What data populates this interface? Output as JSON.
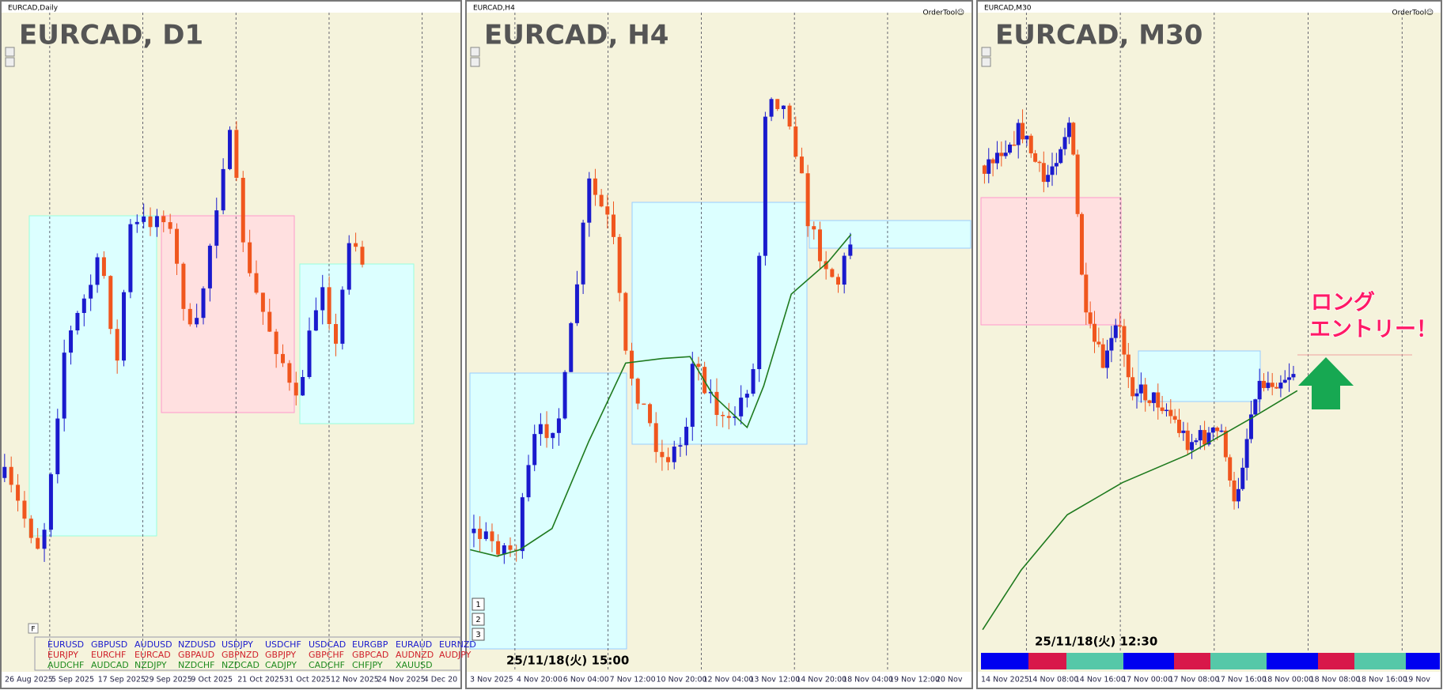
{
  "panels": [
    {
      "window_title": "EURCAD,Daily",
      "label": "EURCAD, D1",
      "xlabels": [
        "26 Aug 2025",
        "5 Sep 2025",
        "17 Sep 2025",
        "29 Sep 2025",
        "9 Oct 2025",
        "21 Oct 2025",
        "31 Oct 2025",
        "12 Nov 2025",
        "24 Nov 2025",
        "4 Dec 20"
      ]
    },
    {
      "window_title": "EURCAD,H4",
      "label": "EURCAD, H4",
      "order_tool": "OrderTool☺",
      "timestamp": "25/11/18(火) 15:00",
      "xlabels": [
        "3 Nov 2025",
        "4 Nov 20:00",
        "6 Nov 04:00",
        "7 Nov 12:00",
        "10 Nov 20:00",
        "12 Nov 04:00",
        "13 Nov 12:00",
        "14 Nov 20:00",
        "18 Nov 04:00",
        "19 Nov 12:00",
        "20 Nov"
      ]
    },
    {
      "window_title": "EURCAD,M30",
      "label": "EURCAD, M30",
      "order_tool": "OrderTool☺",
      "timestamp": "25/11/18(火) 12:30",
      "xlabels": [
        "14 Nov 2025",
        "14 Nov 08:00",
        "14 Nov 16:00",
        "17 Nov 00:00",
        "17 Nov 08:00",
        "17 Nov 16:00",
        "18 Nov 00:00",
        "18 Nov 08:00",
        "18 Nov 16:00",
        "19 Nov"
      ]
    }
  ],
  "symbols": [
    [
      "EURUSD",
      "GBPUSD",
      "AUDUSD",
      "NZDUSD",
      "USDJPY",
      "USDCHF",
      "USDCAD",
      "EURGBP",
      "EURAUD",
      "EURNZD"
    ],
    [
      "EURJPY",
      "EURCHF",
      "EURCAD",
      "GBPAUD",
      "GBPNZD",
      "GBPJPY",
      "GBPCHF",
      "GBPCAD",
      "AUDNZD",
      "AUDJPY"
    ],
    [
      "AUDCHF",
      "AUDCAD",
      "NZDJPY",
      "NZDCHF",
      "NZDCAD",
      "CADJPY",
      "CADCHF",
      "CHFJPY",
      "XAUUSD"
    ]
  ],
  "annotation": [
    "ロング",
    "エントリー！"
  ],
  "buttons": [
    "1",
    "2",
    "3"
  ],
  "f_button": "F"
}
